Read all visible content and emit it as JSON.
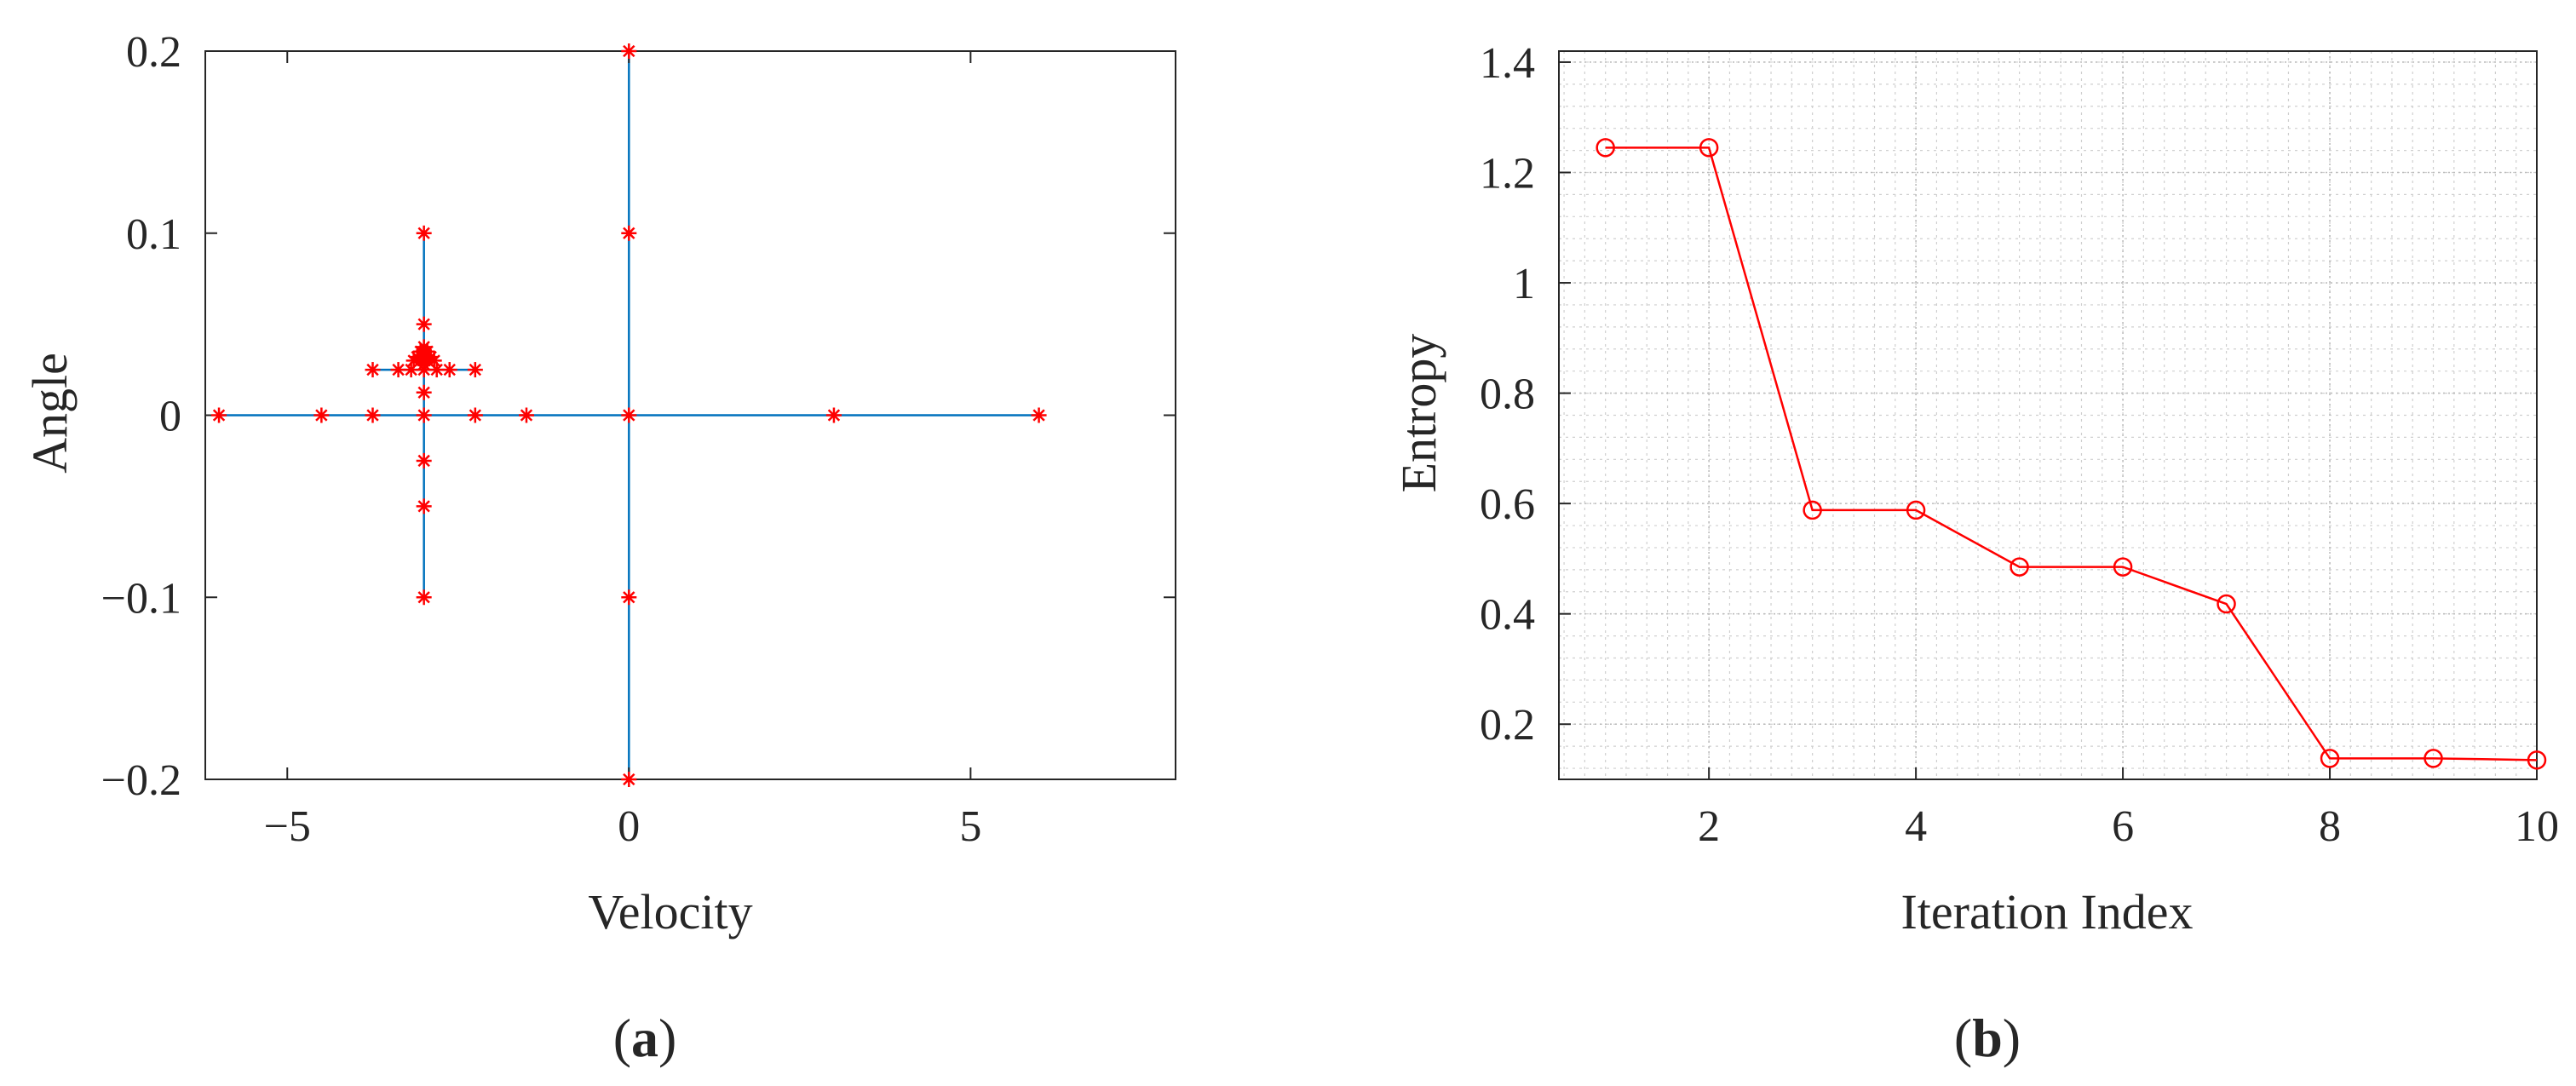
{
  "chart_data": [
    {
      "type": "scatter",
      "panel_label": "(a)",
      "panel_label_parts": {
        "open": "(",
        "letter": "a",
        "close": ")"
      },
      "title": "",
      "xlabel": "Velocity",
      "ylabel": "Angle",
      "xlim": [
        -6.2,
        8
      ],
      "ylim": [
        -0.2,
        0.2
      ],
      "x_ticks": [
        -5,
        0,
        5
      ],
      "x_tick_labels": [
        "−5",
        "0",
        "5"
      ],
      "y_ticks": [
        -0.2,
        -0.1,
        0,
        0.1,
        0.2
      ],
      "y_tick_labels": [
        "−0.2",
        "−0.1",
        "0",
        "0.1",
        "0.2"
      ],
      "grid": false,
      "line_color": "#0072BD",
      "marker_color": "#FF0000",
      "marker": "asterisk",
      "search_lines": [
        {
          "x": [
            -6,
            6
          ],
          "y": [
            0,
            0
          ]
        },
        {
          "x": [
            0,
            0
          ],
          "y": [
            -0.2,
            0.2
          ]
        },
        {
          "x": [
            -3,
            -3
          ],
          "y": [
            -0.1,
            0.1
          ]
        },
        {
          "x": [
            -3.75,
            -2.25
          ],
          "y": [
            0.025,
            0.025
          ]
        }
      ],
      "points": [
        {
          "x": -6,
          "y": 0
        },
        {
          "x": -4.5,
          "y": 0
        },
        {
          "x": -3.75,
          "y": 0
        },
        {
          "x": -3,
          "y": 0
        },
        {
          "x": -2.25,
          "y": 0
        },
        {
          "x": -1.5,
          "y": 0
        },
        {
          "x": 0,
          "y": 0
        },
        {
          "x": 3,
          "y": 0
        },
        {
          "x": 6,
          "y": 0
        },
        {
          "x": 0,
          "y": 0.2
        },
        {
          "x": 0,
          "y": 0.1
        },
        {
          "x": 0,
          "y": -0.1
        },
        {
          "x": 0,
          "y": -0.2
        },
        {
          "x": -3,
          "y": 0.1
        },
        {
          "x": -3,
          "y": 0.05
        },
        {
          "x": -3,
          "y": 0.025
        },
        {
          "x": -3,
          "y": 0.0125
        },
        {
          "x": -3,
          "y": -0.025
        },
        {
          "x": -3,
          "y": -0.05
        },
        {
          "x": -3,
          "y": -0.1
        },
        {
          "x": -3.75,
          "y": 0.025
        },
        {
          "x": -3.375,
          "y": 0.025
        },
        {
          "x": -3.1875,
          "y": 0.025
        },
        {
          "x": -2.8125,
          "y": 0.025
        },
        {
          "x": -2.625,
          "y": 0.025
        },
        {
          "x": -2.25,
          "y": 0.025
        },
        {
          "x": -3,
          "y": 0.0375
        },
        {
          "x": -3,
          "y": 0.031
        },
        {
          "x": -3,
          "y": 0.028
        },
        {
          "x": -3,
          "y": 0.034
        },
        {
          "x": -3.05,
          "y": 0.03
        },
        {
          "x": -2.95,
          "y": 0.03
        },
        {
          "x": -2.9,
          "y": 0.032
        },
        {
          "x": -3.1,
          "y": 0.032
        },
        {
          "x": -2.85,
          "y": 0.03
        },
        {
          "x": -3.15,
          "y": 0.03
        },
        {
          "x": -2.95,
          "y": 0.035
        },
        {
          "x": -3.05,
          "y": 0.035
        }
      ]
    },
    {
      "type": "line",
      "panel_label": "(b)",
      "panel_label_parts": {
        "open": "(",
        "letter": "b",
        "close": ")"
      },
      "title": "",
      "xlabel": "Iteration Index",
      "ylabel": "Entropy",
      "xlim": [
        0.55,
        10
      ],
      "ylim": [
        0.1,
        1.42
      ],
      "x_ticks": [
        2,
        4,
        6,
        8,
        10
      ],
      "x_tick_labels": [
        "2",
        "4",
        "6",
        "8",
        "10"
      ],
      "y_ticks": [
        0.2,
        0.4,
        0.6,
        0.8,
        1,
        1.2,
        1.4
      ],
      "y_tick_labels": [
        "0.2",
        "0.4",
        "0.6",
        "0.8",
        "1",
        "1.2",
        "1.4"
      ],
      "grid": true,
      "minor_grid": true,
      "line_color": "#FF0000",
      "marker": "circle",
      "series": [
        {
          "x": [
            1,
            2,
            3,
            4,
            5,
            6,
            7,
            8,
            9,
            10
          ],
          "values": [
            1.245,
            1.245,
            0.588,
            0.588,
            0.485,
            0.485,
            0.418,
            0.138,
            0.138,
            0.135
          ]
        }
      ]
    }
  ]
}
